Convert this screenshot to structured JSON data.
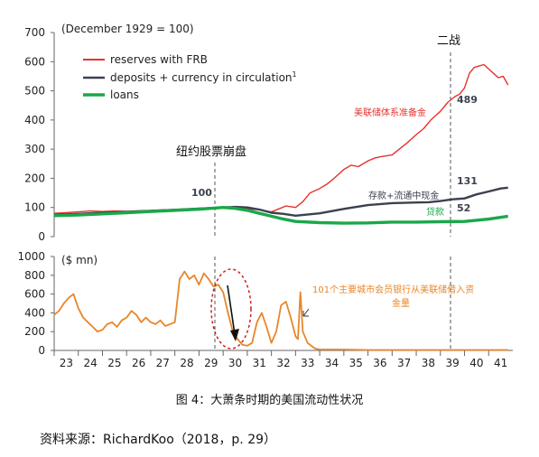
{
  "chart_data": [
    {
      "type": "line",
      "panel": "top",
      "title": "",
      "unit_note": "(December 1929 = 100)",
      "xlabel": "",
      "ylabel": "",
      "x_ticks": [
        "23",
        "24",
        "25",
        "26",
        "27",
        "28",
        "29",
        "30",
        "31",
        "32",
        "33",
        "34",
        "35",
        "36",
        "37",
        "38",
        "39",
        "40",
        "41"
      ],
      "xlim": [
        23,
        42
      ],
      "ylim": [
        0,
        700
      ],
      "y_ticks": [
        "0",
        "100",
        "200",
        "300",
        "400",
        "500",
        "600",
        "700"
      ],
      "grid": false,
      "legend_placement": "top-left",
      "legend": [
        {
          "label": "reserves with FRB",
          "color": "#e8312f"
        },
        {
          "label": "deposits + currency in circulation",
          "superscript": "1",
          "color": "#3b4150"
        },
        {
          "label": "loans",
          "color": "#1aa84a"
        }
      ],
      "series": [
        {
          "name": "reserves with FRB",
          "color": "#e8312f",
          "x": [
            23.0,
            23.5,
            24.0,
            24.5,
            25.0,
            25.5,
            26.0,
            26.5,
            27.0,
            27.5,
            28.0,
            28.5,
            29.0,
            29.5,
            30.0,
            30.5,
            31.0,
            31.5,
            32.0,
            32.3,
            32.6,
            33.0,
            33.3,
            33.6,
            34.0,
            34.3,
            34.6,
            35.0,
            35.3,
            35.6,
            36.0,
            36.3,
            36.6,
            37.0,
            37.3,
            37.6,
            38.0,
            38.3,
            38.6,
            39.0,
            39.3,
            39.6,
            39.8,
            40.0,
            40.2,
            40.4,
            40.6,
            40.8,
            41.0,
            41.2,
            41.4,
            41.6,
            41.8
          ],
          "y": [
            80,
            82,
            85,
            88,
            86,
            88,
            87,
            89,
            90,
            92,
            93,
            95,
            97,
            99,
            100,
            97,
            95,
            92,
            85,
            95,
            105,
            100,
            120,
            150,
            165,
            180,
            200,
            230,
            245,
            240,
            260,
            270,
            275,
            280,
            300,
            320,
            350,
            370,
            400,
            430,
            460,
            480,
            489,
            510,
            560,
            580,
            585,
            590,
            575,
            560,
            545,
            550,
            520
          ]
        },
        {
          "name": "deposits + currency in circulation",
          "color": "#3b4150",
          "x": [
            23.0,
            24.0,
            25.0,
            26.0,
            27.0,
            28.0,
            29.0,
            30.0,
            30.5,
            31.0,
            31.5,
            32.0,
            32.5,
            33.0,
            34.0,
            35.0,
            36.0,
            37.0,
            38.0,
            38.5,
            39.0,
            39.5,
            40.0,
            40.5,
            41.0,
            41.5,
            41.8
          ],
          "y": [
            75,
            78,
            82,
            85,
            88,
            92,
            96,
            100,
            102,
            100,
            93,
            82,
            78,
            72,
            80,
            95,
            108,
            115,
            117,
            118,
            122,
            128,
            131,
            145,
            155,
            165,
            168
          ]
        },
        {
          "name": "loans",
          "color": "#1aa84a",
          "x": [
            23.0,
            24.0,
            25.0,
            26.0,
            27.0,
            28.0,
            29.0,
            30.0,
            30.5,
            31.0,
            31.5,
            32.0,
            32.5,
            33.0,
            34.0,
            35.0,
            36.0,
            37.0,
            38.0,
            39.0,
            40.0,
            41.0,
            41.8
          ],
          "y": [
            72,
            74,
            78,
            82,
            86,
            90,
            94,
            100,
            97,
            90,
            80,
            70,
            60,
            52,
            48,
            46,
            47,
            50,
            50,
            51,
            52,
            60,
            70
          ]
        }
      ],
      "annotations": [
        {
          "text": "二战"
        },
        {
          "text": "纽约股票崩盘"
        },
        {
          "text": "美联储体系准备金",
          "color": "#e8312f"
        },
        {
          "text": "存款+流通中现金",
          "color": "#3b4150"
        },
        {
          "text": "贷款",
          "color": "#1aa84a"
        },
        {
          "text": "100"
        },
        {
          "text": "489"
        },
        {
          "text": "131"
        },
        {
          "text": "52"
        }
      ]
    },
    {
      "type": "line",
      "panel": "bottom",
      "title": "",
      "unit_note": "($ mn)",
      "xlabel": "",
      "ylabel": "",
      "x_ticks": [
        "23",
        "24",
        "25",
        "26",
        "27",
        "28",
        "29",
        "30",
        "31",
        "32",
        "33",
        "34",
        "35",
        "36",
        "37",
        "38",
        "39",
        "40",
        "41"
      ],
      "xlim": [
        23,
        42
      ],
      "ylim": [
        0,
        1000
      ],
      "y_ticks": [
        "0",
        "200",
        "400",
        "600",
        "800",
        "1000"
      ],
      "grid": false,
      "series": [
        {
          "name": "",
          "color": "#e8862a",
          "x": [
            23.0,
            23.2,
            23.4,
            23.6,
            23.8,
            24.0,
            24.2,
            24.4,
            24.6,
            24.8,
            25.0,
            25.2,
            25.4,
            25.6,
            25.8,
            26.0,
            26.2,
            26.4,
            26.6,
            26.8,
            27.0,
            27.2,
            27.4,
            27.6,
            27.8,
            28.0,
            28.2,
            28.4,
            28.6,
            28.8,
            29.0,
            29.2,
            29.4,
            29.6,
            29.8,
            30.0,
            30.2,
            30.4,
            30.6,
            30.8,
            31.0,
            31.2,
            31.4,
            31.6,
            31.8,
            32.0,
            32.2,
            32.4,
            32.6,
            32.8,
            33.0,
            33.1,
            33.2,
            33.3,
            33.5,
            33.8,
            34.0,
            35.0,
            36.0,
            37.0,
            38.0,
            39.0,
            40.0,
            41.0,
            41.8
          ],
          "y": [
            380,
            420,
            500,
            560,
            600,
            450,
            350,
            300,
            250,
            200,
            220,
            280,
            300,
            250,
            320,
            350,
            420,
            380,
            300,
            350,
            300,
            280,
            320,
            260,
            280,
            300,
            760,
            840,
            760,
            800,
            700,
            820,
            760,
            680,
            700,
            620,
            400,
            200,
            120,
            60,
            50,
            80,
            300,
            400,
            250,
            80,
            200,
            480,
            520,
            350,
            150,
            120,
            620,
            200,
            80,
            20,
            10,
            10,
            5,
            5,
            5,
            5,
            5,
            5,
            5
          ]
        }
      ],
      "annotations": [
        {
          "text": "101个主要城市会员银行从美联储借入资金量",
          "color": "#e8862a"
        }
      ]
    }
  ],
  "caption": "图 4：大萧条时期的美国流动性状况",
  "source": "资料来源：RichardKoo（2018，p. 29）"
}
